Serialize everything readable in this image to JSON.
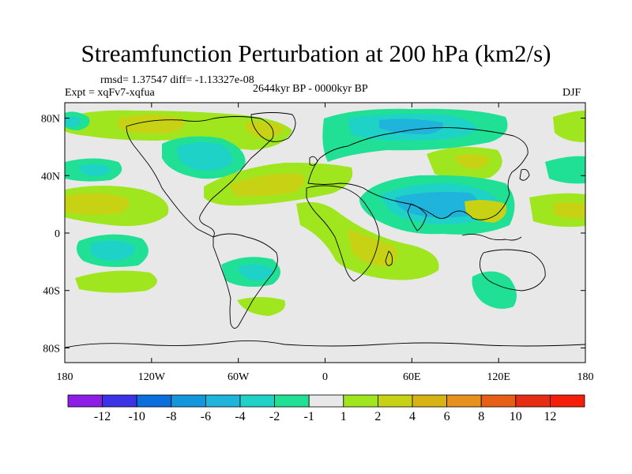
{
  "title": "Streamfunction Perturbation at 200 hPa (km2/s)",
  "stats": "rmsd= 1.37547 diff= -1.13327e-08",
  "experiment": "Expt = xqFv7-xqfua",
  "period": "2644kyr BP - 0000kyr BP",
  "season": "DJF",
  "map": {
    "lat_labels": [
      "80N",
      "40N",
      "0",
      "40S",
      "80S"
    ],
    "lon_labels": [
      "180",
      "120W",
      "60W",
      "0",
      "60E",
      "120E",
      "180"
    ],
    "lat_values": [
      80,
      40,
      0,
      -40,
      -80
    ],
    "lon_values": [
      -180,
      -120,
      -60,
      0,
      60,
      120,
      180
    ]
  },
  "colorbar": {
    "labels": [
      "-12",
      "-10",
      "-8",
      "-6",
      "-4",
      "-2",
      "-1",
      "1",
      "2",
      "4",
      "6",
      "8",
      "10",
      "12"
    ],
    "colors": [
      "#8d1ee6",
      "#3c32e6",
      "#0b6edc",
      "#1496dc",
      "#1eb4dc",
      "#1ed2c8",
      "#20e096",
      "#e8e8e8",
      "#a0e61e",
      "#c8d214",
      "#d7b414",
      "#e6911e",
      "#e65f14",
      "#e62d14",
      "#f51e0a"
    ]
  },
  "colors": {
    "background": "#ffffff",
    "neutral": "#e8e8e8",
    "coast": "#000000"
  }
}
